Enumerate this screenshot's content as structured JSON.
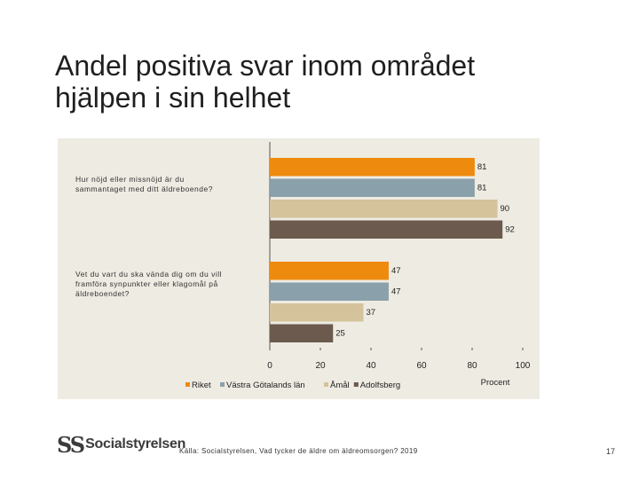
{
  "slide": {
    "title_line1": "Andel positiva svar inom området",
    "title_line2": "hjälpen i sin helhet",
    "source": "Källa: Socialstyrelsen, Vad tycker de äldre om äldreomsorgen? 2019",
    "page_number": "17",
    "logo_text": "Socialstyrelsen",
    "logo_mark": "SS"
  },
  "colors": {
    "Riket": "#ee8a0e",
    "Västra Götalands län": "#8aa0aa",
    "Åmål": "#d4c39b",
    "Adolfsberg": "#6b5a4d",
    "panel": "#eeebe2"
  },
  "chart_data": {
    "type": "bar",
    "orientation": "horizontal",
    "categories": [
      "Hur nöjd eller missnöjd är du sammantaget med ditt äldreboende?",
      "Vet du vart du ska vända dig om du vill framföra synpunkter eller klagomål på äldreboendet?"
    ],
    "series": [
      {
        "name": "Riket",
        "values": [
          81,
          47
        ]
      },
      {
        "name": "Västra Götalands län",
        "values": [
          81,
          47
        ]
      },
      {
        "name": "Åmål",
        "values": [
          90,
          37
        ]
      },
      {
        "name": "Adolfsberg",
        "values": [
          92,
          25
        ]
      }
    ],
    "xlim": [
      0,
      100
    ],
    "xticks": [
      0,
      20,
      40,
      60,
      80,
      100
    ],
    "xlabel": "Procent",
    "ylabel": "",
    "legend_position": "bottom",
    "data_labels": true
  }
}
